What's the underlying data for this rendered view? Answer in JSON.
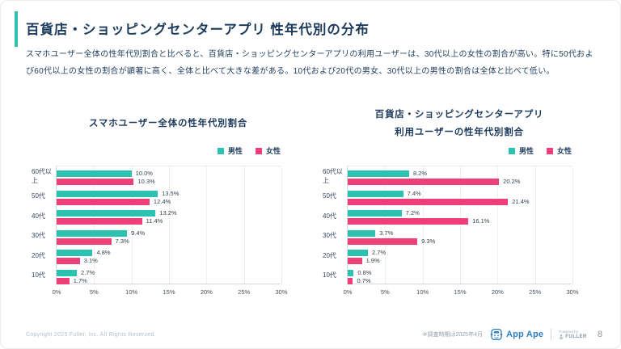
{
  "page": {
    "title": "百貨店・ショッピングセンターアプリ 性年代別の分布",
    "description": "スマホユーザー全体の性年代別割合と比べると、百貨店・ショッピングセンターアプリの利用ユーザーは、30代以上の女性の割合が高い。特に50代および60代以上の女性の割合が顕著に高く、全体と比べて大きな差がある。10代および20代の男女、30代以上の男性の割合は全体と比べて低い。"
  },
  "colors": {
    "accent_teal": "#2cc2b0",
    "male": "#2cc2b0",
    "female": "#ee4078",
    "navy_text": "#1c3a5c",
    "logo_blue": "#2b7fc0"
  },
  "chart_data": [
    {
      "type": "bar",
      "orientation": "horizontal",
      "title_lines": [
        "スマホユーザー全体の性年代別割合"
      ],
      "categories": [
        "60代以上",
        "50代",
        "40代",
        "30代",
        "20代",
        "10代"
      ],
      "series": [
        {
          "name": "男性",
          "color": "#2cc2b0",
          "values": [
            10.0,
            13.5,
            13.2,
            9.4,
            4.8,
            2.7
          ]
        },
        {
          "name": "女性",
          "color": "#ee4078",
          "values": [
            10.3,
            12.4,
            11.4,
            7.3,
            3.1,
            1.7
          ]
        }
      ],
      "value_suffix": "%",
      "xlim": [
        0,
        30
      ],
      "x_ticks": [
        "0%",
        "5%",
        "10%",
        "15%",
        "20%",
        "25%",
        "30%"
      ],
      "grid": "dotted-vertical",
      "legend_position": "top-right"
    },
    {
      "type": "bar",
      "orientation": "horizontal",
      "title_lines": [
        "百貨店・ショッピングセンターアプリ",
        "利用ユーザーの性年代別割合"
      ],
      "categories": [
        "60代以上",
        "50代",
        "40代",
        "30代",
        "20代",
        "10代"
      ],
      "series": [
        {
          "name": "男性",
          "color": "#2cc2b0",
          "values": [
            8.2,
            7.4,
            7.2,
            3.7,
            2.7,
            0.8
          ]
        },
        {
          "name": "女性",
          "color": "#ee4078",
          "values": [
            20.2,
            21.4,
            16.1,
            9.3,
            1.9,
            0.7
          ]
        }
      ],
      "value_suffix": "%",
      "xlim": [
        0,
        30
      ],
      "x_ticks": [
        "0%",
        "5%",
        "10%",
        "15%",
        "20%",
        "25%",
        "30%"
      ],
      "grid": "dotted-vertical",
      "legend_position": "top-right"
    }
  ],
  "footer": {
    "copyright": "Copyright 2025 Fuller, Inc. All Rights Reserved.",
    "survey_note": "※調査時期は2025年4月",
    "logo_text": "App Ape",
    "powered_by": "Powered by",
    "powered_by_brand": "FULLER",
    "page_number": "8"
  }
}
